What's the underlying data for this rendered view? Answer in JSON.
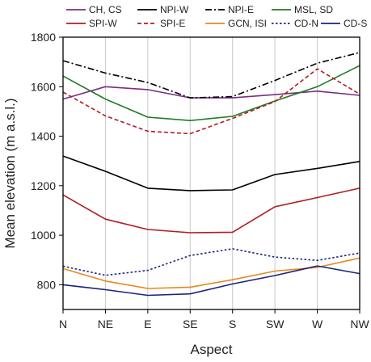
{
  "chart_data": {
    "type": "line",
    "title": "",
    "xlabel": "Aspect",
    "ylabel": "Mean elevation (m a.s.l.)",
    "categories": [
      "N",
      "NE",
      "E",
      "SE",
      "S",
      "SW",
      "W",
      "NW"
    ],
    "ylim": [
      700,
      1800
    ],
    "yticks": [
      800,
      1000,
      1200,
      1400,
      1600,
      1800
    ],
    "grid": "vertical",
    "legend_position": "top",
    "series": [
      {
        "name": "CH, CS",
        "color": "#7b2c82",
        "dash": "solid",
        "values": [
          1550,
          1600,
          1588,
          1555,
          1555,
          1568,
          1582,
          1565
        ]
      },
      {
        "name": "NPI-W",
        "color": "#000000",
        "dash": "solid",
        "values": [
          1320,
          1258,
          1190,
          1180,
          1183,
          1245,
          1270,
          1298
        ]
      },
      {
        "name": "NPI-E",
        "color": "#000000",
        "dash": "dashdot",
        "values": [
          1705,
          1655,
          1617,
          1555,
          1560,
          1625,
          1695,
          1738
        ]
      },
      {
        "name": "MSL, SD",
        "color": "#1f7a1f",
        "dash": "solid",
        "values": [
          1643,
          1550,
          1477,
          1463,
          1480,
          1542,
          1600,
          1685
        ]
      },
      {
        "name": "SPI-W",
        "color": "#b01c22",
        "dash": "solid",
        "values": [
          1163,
          1065,
          1023,
          1010,
          1012,
          1115,
          1152,
          1190
        ]
      },
      {
        "name": "SPI-E",
        "color": "#b01c22",
        "dash": "dashed",
        "values": [
          1578,
          1482,
          1420,
          1410,
          1472,
          1540,
          1672,
          1570
        ]
      },
      {
        "name": "GCN, ISI",
        "color": "#e8891b",
        "dash": "solid",
        "values": [
          865,
          815,
          785,
          790,
          820,
          855,
          870,
          908
        ]
      },
      {
        "name": "CD-N",
        "color": "#1a237e",
        "dash": "dotted",
        "values": [
          875,
          838,
          858,
          918,
          945,
          912,
          898,
          928
        ]
      },
      {
        "name": "CD-S",
        "color": "#1a237e",
        "dash": "solid",
        "values": [
          800,
          780,
          757,
          763,
          803,
          837,
          876,
          845
        ]
      }
    ]
  }
}
